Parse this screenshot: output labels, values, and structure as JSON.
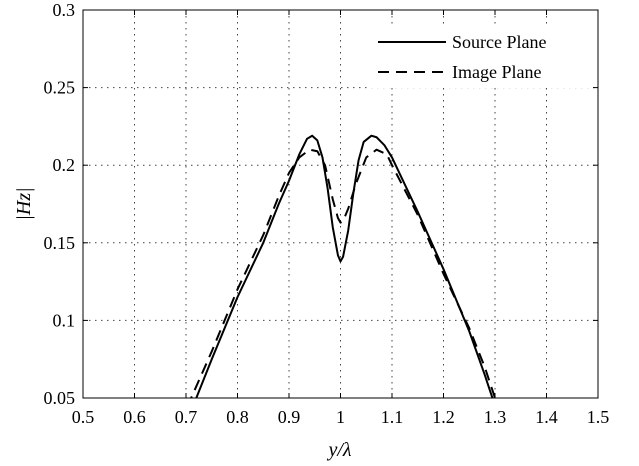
{
  "chart_data": {
    "type": "line",
    "xlabel": "y/λ",
    "ylabel": "|Hz|",
    "xlim": [
      0.5,
      1.5
    ],
    "ylim": [
      0.05,
      0.3
    ],
    "grid": true,
    "legend_position": "top-right",
    "x_ticks": [
      "0.5",
      "0.6",
      "0.7",
      "0.8",
      "0.9",
      "1",
      "1.1",
      "1.2",
      "1.3",
      "1.4",
      "1.5"
    ],
    "y_ticks": [
      "0.05",
      "0.1",
      "0.15",
      "0.2",
      "0.25",
      "0.3"
    ],
    "series": [
      {
        "name": "Source Plane",
        "line_style": "solid",
        "color": "#000000",
        "points": [
          [
            0.71,
            0.045
          ],
          [
            0.72,
            0.05
          ],
          [
            0.75,
            0.075
          ],
          [
            0.8,
            0.115
          ],
          [
            0.85,
            0.15
          ],
          [
            0.88,
            0.175
          ],
          [
            0.9,
            0.19
          ],
          [
            0.92,
            0.207
          ],
          [
            0.935,
            0.217
          ],
          [
            0.945,
            0.219
          ],
          [
            0.955,
            0.216
          ],
          [
            0.965,
            0.205
          ],
          [
            0.975,
            0.185
          ],
          [
            0.985,
            0.16
          ],
          [
            0.995,
            0.142
          ],
          [
            1.0,
            0.138
          ],
          [
            1.005,
            0.141
          ],
          [
            1.015,
            0.158
          ],
          [
            1.025,
            0.182
          ],
          [
            1.035,
            0.203
          ],
          [
            1.045,
            0.215
          ],
          [
            1.06,
            0.219
          ],
          [
            1.07,
            0.218
          ],
          [
            1.085,
            0.213
          ],
          [
            1.1,
            0.205
          ],
          [
            1.15,
            0.17
          ],
          [
            1.2,
            0.133
          ],
          [
            1.25,
            0.093
          ],
          [
            1.28,
            0.065
          ],
          [
            1.295,
            0.05
          ],
          [
            1.3,
            0.045
          ]
        ]
      },
      {
        "name": "Image Plane",
        "line_style": "dashed",
        "color": "#000000",
        "points": [
          [
            0.7,
            0.045
          ],
          [
            0.71,
            0.05
          ],
          [
            0.75,
            0.08
          ],
          [
            0.8,
            0.12
          ],
          [
            0.85,
            0.155
          ],
          [
            0.88,
            0.18
          ],
          [
            0.9,
            0.195
          ],
          [
            0.92,
            0.205
          ],
          [
            0.94,
            0.21
          ],
          [
            0.955,
            0.209
          ],
          [
            0.97,
            0.2
          ],
          [
            0.985,
            0.178
          ],
          [
            0.995,
            0.166
          ],
          [
            1.0,
            0.163
          ],
          [
            1.005,
            0.164
          ],
          [
            1.015,
            0.172
          ],
          [
            1.03,
            0.188
          ],
          [
            1.05,
            0.205
          ],
          [
            1.07,
            0.21
          ],
          [
            1.09,
            0.207
          ],
          [
            1.1,
            0.2
          ],
          [
            1.15,
            0.168
          ],
          [
            1.2,
            0.13
          ],
          [
            1.25,
            0.095
          ],
          [
            1.28,
            0.07
          ],
          [
            1.295,
            0.055
          ],
          [
            1.3,
            0.05
          ],
          [
            1.305,
            0.045
          ]
        ]
      }
    ]
  }
}
